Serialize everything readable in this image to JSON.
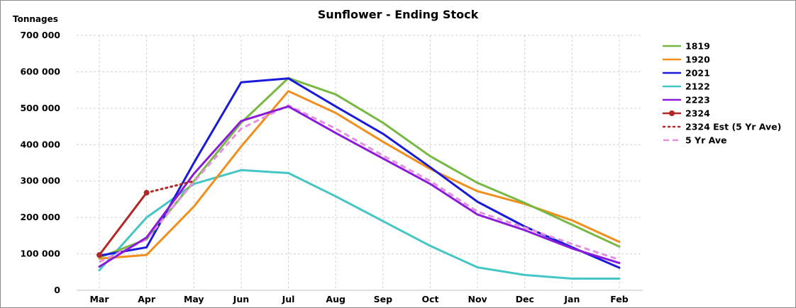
{
  "chart_data": {
    "type": "line",
    "title": "Sunflower - Ending Stock",
    "ylabel": "Tonnages",
    "xlabel": "",
    "categories": [
      "Mar",
      "Apr",
      "May",
      "Jun",
      "Jul",
      "Aug",
      "Sep",
      "Oct",
      "Nov",
      "Dec",
      "Jan",
      "Feb"
    ],
    "ylim": [
      0,
      700000
    ],
    "yticks": [
      0,
      100000,
      200000,
      300000,
      400000,
      500000,
      600000,
      700000
    ],
    "ytick_labels": [
      "0",
      "100 000",
      "200 000",
      "300 000",
      "400 000",
      "500 000",
      "600 000",
      "700 000"
    ],
    "grid": true,
    "legend_position": "right",
    "series": [
      {
        "name": "1819",
        "color": "#77b843",
        "style": "solid",
        "values": [
          90000,
          140000,
          300000,
          460000,
          583000,
          538000,
          460000,
          368000,
          295000,
          240000,
          180000,
          120000
        ]
      },
      {
        "name": "1920",
        "color": "#f28e1c",
        "style": "solid",
        "values": [
          87000,
          97000,
          230000,
          395000,
          547000,
          487000,
          408000,
          333000,
          272000,
          237000,
          192000,
          133000
        ]
      },
      {
        "name": "2021",
        "color": "#1a1adb",
        "style": "solid",
        "values": [
          95000,
          118000,
          350000,
          571000,
          582000,
          505000,
          430000,
          338000,
          243000,
          175000,
          118000,
          62000
        ]
      },
      {
        "name": "2122",
        "color": "#45c6c6",
        "style": "solid",
        "values": [
          55000,
          200000,
          292000,
          330000,
          322000,
          258000,
          190000,
          122000,
          63000,
          42000,
          32000,
          32000
        ]
      },
      {
        "name": "2223",
        "color": "#8a1bdb",
        "style": "solid",
        "values": [
          65000,
          145000,
          320000,
          465000,
          505000,
          432000,
          362000,
          292000,
          208000,
          165000,
          115000,
          75000
        ]
      },
      {
        "name": "2324",
        "color": "#b32727",
        "style": "solid-marker",
        "values": [
          97000,
          268000,
          null,
          null,
          null,
          null,
          null,
          null,
          null,
          null,
          null,
          null
        ]
      },
      {
        "name": "2324 Est (5 Yr Ave)",
        "color": "#b32727",
        "style": "dotted",
        "values": [
          null,
          268000,
          300000,
          null,
          null,
          null,
          null,
          null,
          null,
          null,
          null,
          null
        ]
      },
      {
        "name": "5 Yr Ave",
        "color": "#e48fe0",
        "style": "dashed",
        "values": [
          78000,
          140000,
          298000,
          444000,
          508000,
          444000,
          370000,
          300000,
          216000,
          172000,
          127000,
          84000
        ]
      }
    ]
  }
}
